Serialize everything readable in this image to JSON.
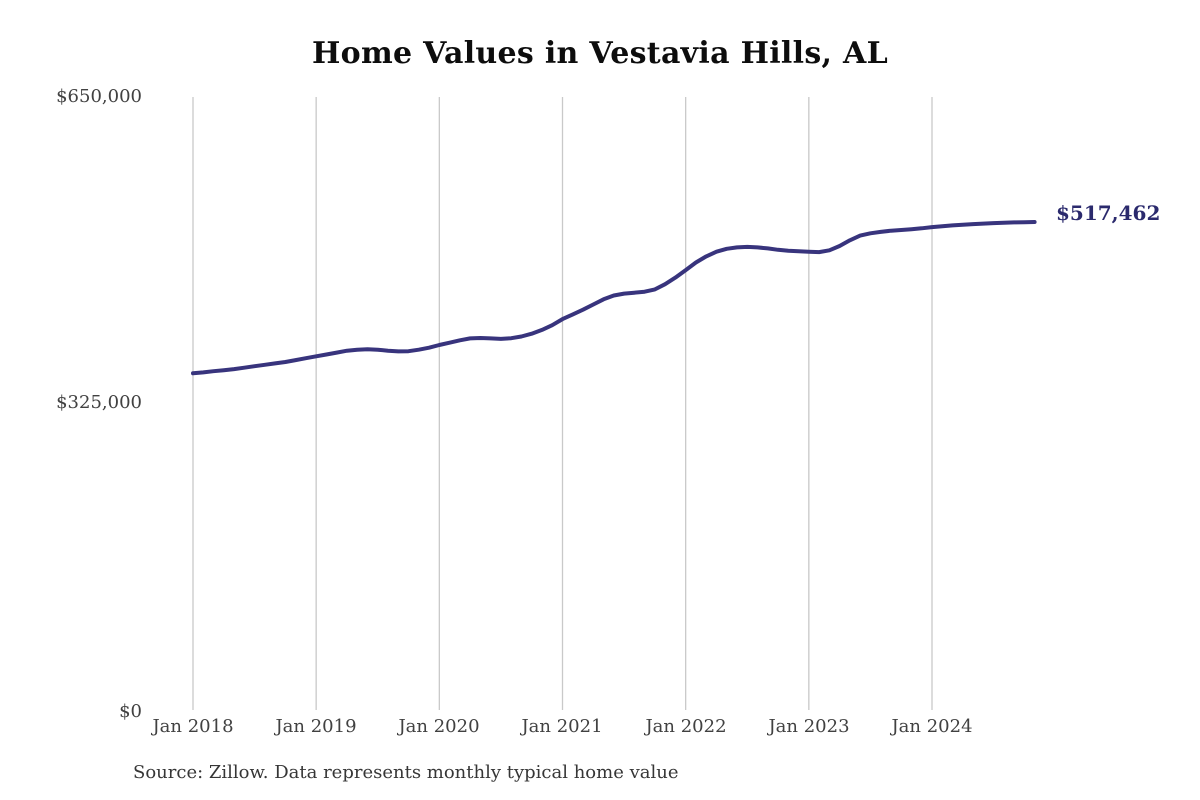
{
  "page": {
    "background_color": "#ffffff"
  },
  "chart_data": {
    "type": "line",
    "title": "Home Values in Vestavia Hills, AL",
    "source_note": "Source: Zillow. Data represents monthly typical home value",
    "end_label": "$517,462",
    "end_value": 517462,
    "xlabel": "",
    "ylabel": "",
    "ylim": [
      0,
      650000
    ],
    "y_ticks": [
      {
        "label": "$650,000",
        "value": 650000
      },
      {
        "label": "$325,000",
        "value": 325000
      },
      {
        "label": "$0",
        "value": 0
      }
    ],
    "x_ticks": [
      "Jan 2018",
      "Jan 2019",
      "Jan 2020",
      "Jan 2021",
      "Jan 2022",
      "Jan 2023",
      "Jan 2024"
    ],
    "x_unit": "month",
    "x_start": "Jan 2018",
    "x_end": "Nov 2024",
    "grid": "vertical-only",
    "legend": "none",
    "line_color": "#38347d",
    "grid_color": "#c9c9c9",
    "series": [
      {
        "name": "Monthly typical home value",
        "values": [
          357000,
          358000,
          359200,
          360300,
          361500,
          363000,
          364500,
          366000,
          367500,
          369000,
          371000,
          373000,
          375000,
          377000,
          379000,
          381000,
          382000,
          382500,
          382000,
          381000,
          380200,
          380500,
          382000,
          384200,
          387000,
          389500,
          392000,
          394000,
          394500,
          394000,
          393500,
          394200,
          396000,
          399000,
          403000,
          408000,
          414500,
          419500,
          424500,
          430000,
          435500,
          439500,
          441500,
          442500,
          443500,
          446000,
          451500,
          458500,
          466500,
          474500,
          481000,
          486000,
          489000,
          490500,
          491000,
          490500,
          489500,
          488000,
          487000,
          486500,
          486000,
          485500,
          487500,
          492000,
          498000,
          503000,
          505500,
          507000,
          508200,
          509000,
          509800,
          510800,
          512000,
          513000,
          513800,
          514500,
          515200,
          515800,
          516300,
          516700,
          517000,
          517250,
          517462
        ]
      }
    ]
  }
}
